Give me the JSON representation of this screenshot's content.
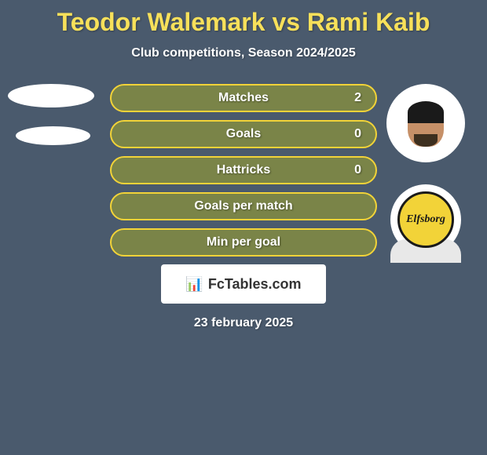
{
  "title": "Teodor Walemark vs Rami Kaib",
  "subtitle": "Club competitions, Season 2024/2025",
  "date": "23 february 2025",
  "logo_text": "FcTables.com",
  "crest_text": "Elfsborg",
  "stats": [
    {
      "label": "Matches",
      "value": "2"
    },
    {
      "label": "Goals",
      "value": "0"
    },
    {
      "label": "Hattricks",
      "value": "0"
    },
    {
      "label": "Goals per match",
      "value": ""
    },
    {
      "label": "Min per goal",
      "value": ""
    }
  ],
  "style": {
    "bg_color": "#4a5a6d",
    "title_color": "#f7e05a",
    "text_color": "#ffffff",
    "bar_bg": "#7a8448",
    "bar_border": "#f2d338",
    "bar_radius": 18,
    "crest_bg": "#f2d338",
    "crest_border": "#1a1a1a",
    "logo_bg": "#ffffff"
  }
}
